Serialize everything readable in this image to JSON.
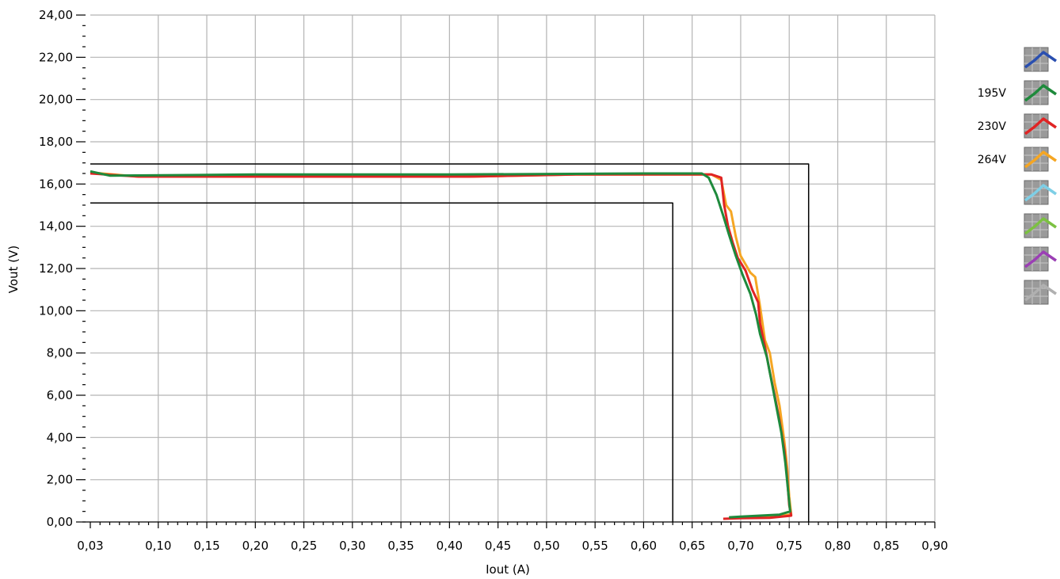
{
  "chart_data": {
    "type": "line",
    "xlabel": "Iout (A)",
    "ylabel": "Vout (V)",
    "xlim": [
      0.03,
      0.9
    ],
    "ylim": [
      0,
      24
    ],
    "x_ticks": [
      "0,03",
      "0,10",
      "0,15",
      "0,20",
      "0,25",
      "0,30",
      "0,35",
      "0,40",
      "0,45",
      "0,50",
      "0,55",
      "0,60",
      "0,65",
      "0,70",
      "0,75",
      "0,80",
      "0,85",
      "0,90"
    ],
    "y_ticks": [
      "0,00",
      "2,00",
      "4,00",
      "6,00",
      "8,00",
      "10,00",
      "12,00",
      "14,00",
      "16,00",
      "18,00",
      "20,00",
      "22,00",
      "24,00"
    ],
    "grid": true,
    "legend_position": "right",
    "legend": [
      {
        "label": "",
        "color": "#2a4fb0",
        "icon": "plot-line-icon"
      },
      {
        "label": "195V",
        "color": "#1e8a3c",
        "icon": "plot-line-icon"
      },
      {
        "label": "230V",
        "color": "#e02424",
        "icon": "plot-line-icon"
      },
      {
        "label": "264V",
        "color": "#f5a623",
        "icon": "plot-line-icon"
      },
      {
        "label": "",
        "color": "#7ecfe6",
        "icon": "plot-line-icon"
      },
      {
        "label": "",
        "color": "#7cc142",
        "icon": "plot-line-icon"
      },
      {
        "label": "",
        "color": "#9b3fb5",
        "icon": "plot-line-icon"
      },
      {
        "label": "",
        "color": "#b0b0b0",
        "icon": "plot-line-icon"
      }
    ],
    "series": [
      {
        "name": "264V",
        "color": "#f5a623",
        "points": [
          [
            0.03,
            16.55
          ],
          [
            0.08,
            16.35
          ],
          [
            0.42,
            16.35
          ],
          [
            0.53,
            16.45
          ],
          [
            0.67,
            16.45
          ],
          [
            0.68,
            16.2
          ],
          [
            0.685,
            15.0
          ],
          [
            0.69,
            14.7
          ],
          [
            0.695,
            13.5
          ],
          [
            0.7,
            12.6
          ],
          [
            0.705,
            12.2
          ],
          [
            0.71,
            11.8
          ],
          [
            0.715,
            11.6
          ],
          [
            0.72,
            10.2
          ],
          [
            0.725,
            8.6
          ],
          [
            0.73,
            8.0
          ],
          [
            0.735,
            6.6
          ],
          [
            0.74,
            5.5
          ],
          [
            0.745,
            3.8
          ],
          [
            0.748,
            2.5
          ],
          [
            0.75,
            1.2
          ],
          [
            0.752,
            0.35
          ],
          [
            0.73,
            0.25
          ],
          [
            0.7,
            0.2
          ],
          [
            0.688,
            0.18
          ]
        ]
      },
      {
        "name": "230V",
        "color": "#e02424",
        "points": [
          [
            0.03,
            16.5
          ],
          [
            0.08,
            16.35
          ],
          [
            0.42,
            16.35
          ],
          [
            0.53,
            16.45
          ],
          [
            0.67,
            16.45
          ],
          [
            0.68,
            16.3
          ],
          [
            0.683,
            15.0
          ],
          [
            0.687,
            14.0
          ],
          [
            0.692,
            13.2
          ],
          [
            0.697,
            12.5
          ],
          [
            0.705,
            11.9
          ],
          [
            0.712,
            11.0
          ],
          [
            0.718,
            10.4
          ],
          [
            0.72,
            9.4
          ],
          [
            0.725,
            8.3
          ],
          [
            0.73,
            7.1
          ],
          [
            0.735,
            6.0
          ],
          [
            0.74,
            4.8
          ],
          [
            0.745,
            3.4
          ],
          [
            0.748,
            2.0
          ],
          [
            0.75,
            0.8
          ],
          [
            0.752,
            0.3
          ],
          [
            0.73,
            0.2
          ],
          [
            0.7,
            0.18
          ],
          [
            0.682,
            0.15
          ]
        ]
      },
      {
        "name": "195V",
        "color": "#1e8a3c",
        "points": [
          [
            0.03,
            16.6
          ],
          [
            0.05,
            16.4
          ],
          [
            0.2,
            16.45
          ],
          [
            0.4,
            16.45
          ],
          [
            0.6,
            16.5
          ],
          [
            0.66,
            16.5
          ],
          [
            0.667,
            16.3
          ],
          [
            0.675,
            15.5
          ],
          [
            0.682,
            14.5
          ],
          [
            0.688,
            13.6
          ],
          [
            0.695,
            12.6
          ],
          [
            0.702,
            11.7
          ],
          [
            0.71,
            10.8
          ],
          [
            0.716,
            9.8
          ],
          [
            0.72,
            8.9
          ],
          [
            0.727,
            7.8
          ],
          [
            0.732,
            6.6
          ],
          [
            0.737,
            5.4
          ],
          [
            0.742,
            4.2
          ],
          [
            0.746,
            2.8
          ],
          [
            0.749,
            1.4
          ],
          [
            0.751,
            0.5
          ],
          [
            0.74,
            0.35
          ],
          [
            0.72,
            0.3
          ],
          [
            0.7,
            0.25
          ],
          [
            0.688,
            0.22
          ]
        ]
      },
      {
        "name": "",
        "color": "#000000",
        "points": [
          [
            0.03,
            16.95
          ],
          [
            0.77,
            16.95
          ],
          [
            0.77,
            0
          ]
        ]
      },
      {
        "name": "",
        "color": "#000000",
        "points": [
          [
            0.03,
            15.1
          ],
          [
            0.63,
            15.1
          ],
          [
            0.63,
            0
          ]
        ]
      }
    ]
  }
}
